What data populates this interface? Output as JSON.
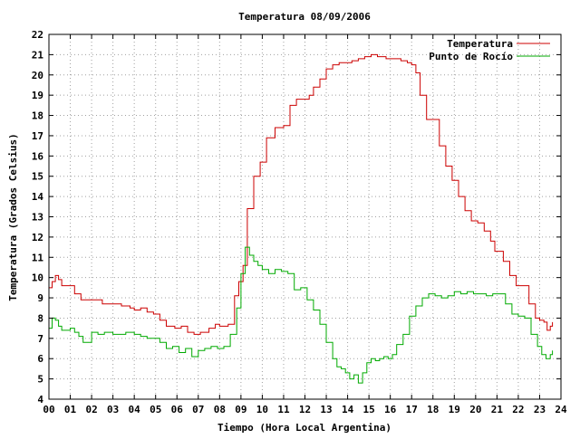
{
  "chart_data": {
    "type": "line",
    "title": "Temperatura 08/09/2006",
    "xlabel": "Tiempo (Hora Local Argentina)",
    "ylabel": "Temperatura (Grados Celsius)",
    "xlim": [
      0,
      24
    ],
    "ylim": [
      4,
      22
    ],
    "x_ticks": [
      "00",
      "01",
      "02",
      "03",
      "04",
      "05",
      "06",
      "07",
      "08",
      "09",
      "10",
      "11",
      "12",
      "13",
      "14",
      "15",
      "16",
      "17",
      "18",
      "19",
      "20",
      "21",
      "22",
      "23",
      "24"
    ],
    "y_ticks": [
      "4",
      "5",
      "6",
      "7",
      "8",
      "9",
      "10",
      "11",
      "12",
      "13",
      "14",
      "15",
      "16",
      "17",
      "18",
      "19",
      "20",
      "21",
      "22"
    ],
    "grid": true,
    "legend_position": "top-right",
    "series": [
      {
        "name": "Temperatura",
        "color": "#cc0000",
        "x": [
          0,
          0.15,
          0.3,
          0.45,
          0.6,
          1.0,
          1.2,
          1.5,
          1.8,
          2.2,
          2.5,
          3.0,
          3.4,
          3.8,
          4.0,
          4.3,
          4.6,
          4.9,
          5.2,
          5.5,
          5.9,
          6.2,
          6.5,
          6.8,
          7.1,
          7.5,
          7.8,
          8.0,
          8.4,
          8.7,
          8.9,
          9.1,
          9.3,
          9.6,
          9.9,
          10.2,
          10.6,
          11.0,
          11.3,
          11.6,
          11.9,
          12.2,
          12.4,
          12.7,
          13.0,
          13.3,
          13.6,
          13.9,
          14.2,
          14.5,
          14.8,
          15.1,
          15.4,
          15.8,
          16.2,
          16.5,
          16.8,
          17.0,
          17.2,
          17.4,
          17.7,
          18.0,
          18.3,
          18.6,
          18.9,
          19.2,
          19.5,
          19.8,
          20.1,
          20.4,
          20.7,
          20.9,
          21.1,
          21.3,
          21.6,
          21.9,
          22.2,
          22.5,
          22.8,
          23.0,
          23.2,
          23.35,
          23.5,
          23.6
        ],
        "values": [
          9.5,
          9.8,
          10.1,
          9.9,
          9.6,
          9.6,
          9.2,
          8.9,
          8.9,
          8.9,
          8.7,
          8.7,
          8.6,
          8.5,
          8.4,
          8.5,
          8.3,
          8.2,
          7.9,
          7.6,
          7.5,
          7.6,
          7.3,
          7.2,
          7.3,
          7.5,
          7.7,
          7.6,
          7.7,
          9.1,
          9.8,
          10.6,
          13.4,
          15.0,
          15.7,
          16.9,
          17.4,
          17.5,
          18.5,
          18.8,
          18.8,
          19.0,
          19.4,
          19.8,
          20.3,
          20.5,
          20.6,
          20.6,
          20.7,
          20.8,
          20.9,
          21.0,
          20.9,
          20.8,
          20.8,
          20.7,
          20.6,
          20.5,
          20.1,
          19.0,
          17.8,
          17.8,
          16.5,
          15.5,
          14.8,
          14.0,
          13.3,
          12.8,
          12.7,
          12.3,
          11.8,
          11.3,
          11.3,
          10.8,
          10.1,
          9.6,
          9.6,
          8.7,
          8.0,
          7.9,
          7.8,
          7.4,
          7.6,
          7.8
        ]
      },
      {
        "name": "Punto de Rocío",
        "color": "#00aa00",
        "x": [
          0,
          0.15,
          0.3,
          0.45,
          0.6,
          1.0,
          1.2,
          1.4,
          1.6,
          2.0,
          2.3,
          2.6,
          3.0,
          3.3,
          3.6,
          4.0,
          4.3,
          4.6,
          4.9,
          5.2,
          5.5,
          5.8,
          6.1,
          6.4,
          6.7,
          7.0,
          7.3,
          7.6,
          7.9,
          8.2,
          8.5,
          8.8,
          9.0,
          9.2,
          9.4,
          9.6,
          9.8,
          10.0,
          10.3,
          10.6,
          10.9,
          11.2,
          11.5,
          11.8,
          12.1,
          12.4,
          12.7,
          13.0,
          13.3,
          13.5,
          13.7,
          13.9,
          14.1,
          14.3,
          14.5,
          14.7,
          14.9,
          15.1,
          15.3,
          15.5,
          15.7,
          15.9,
          16.1,
          16.3,
          16.6,
          16.9,
          17.2,
          17.5,
          17.8,
          18.1,
          18.4,
          18.7,
          19.0,
          19.3,
          19.6,
          19.9,
          20.2,
          20.5,
          20.8,
          21.1,
          21.4,
          21.7,
          22.0,
          22.3,
          22.6,
          22.9,
          23.1,
          23.3,
          23.5,
          23.6
        ],
        "values": [
          7.5,
          8.0,
          7.9,
          7.6,
          7.4,
          7.5,
          7.3,
          7.1,
          6.8,
          7.3,
          7.2,
          7.3,
          7.2,
          7.2,
          7.3,
          7.2,
          7.1,
          7.0,
          7.0,
          6.8,
          6.5,
          6.6,
          6.3,
          6.5,
          6.1,
          6.4,
          6.5,
          6.6,
          6.5,
          6.6,
          7.2,
          8.5,
          10.2,
          11.5,
          11.1,
          10.8,
          10.6,
          10.4,
          10.2,
          10.4,
          10.3,
          10.2,
          9.4,
          9.5,
          8.9,
          8.4,
          7.7,
          6.8,
          6.0,
          5.6,
          5.5,
          5.3,
          5.0,
          5.2,
          4.8,
          5.3,
          5.8,
          6.0,
          5.9,
          6.0,
          6.1,
          6.0,
          6.2,
          6.7,
          7.2,
          8.1,
          8.6,
          9.0,
          9.2,
          9.1,
          9.0,
          9.1,
          9.3,
          9.2,
          9.3,
          9.2,
          9.2,
          9.1,
          9.2,
          9.2,
          8.7,
          8.2,
          8.1,
          8.0,
          7.2,
          6.6,
          6.2,
          6.0,
          6.2,
          6.4
        ]
      }
    ]
  }
}
